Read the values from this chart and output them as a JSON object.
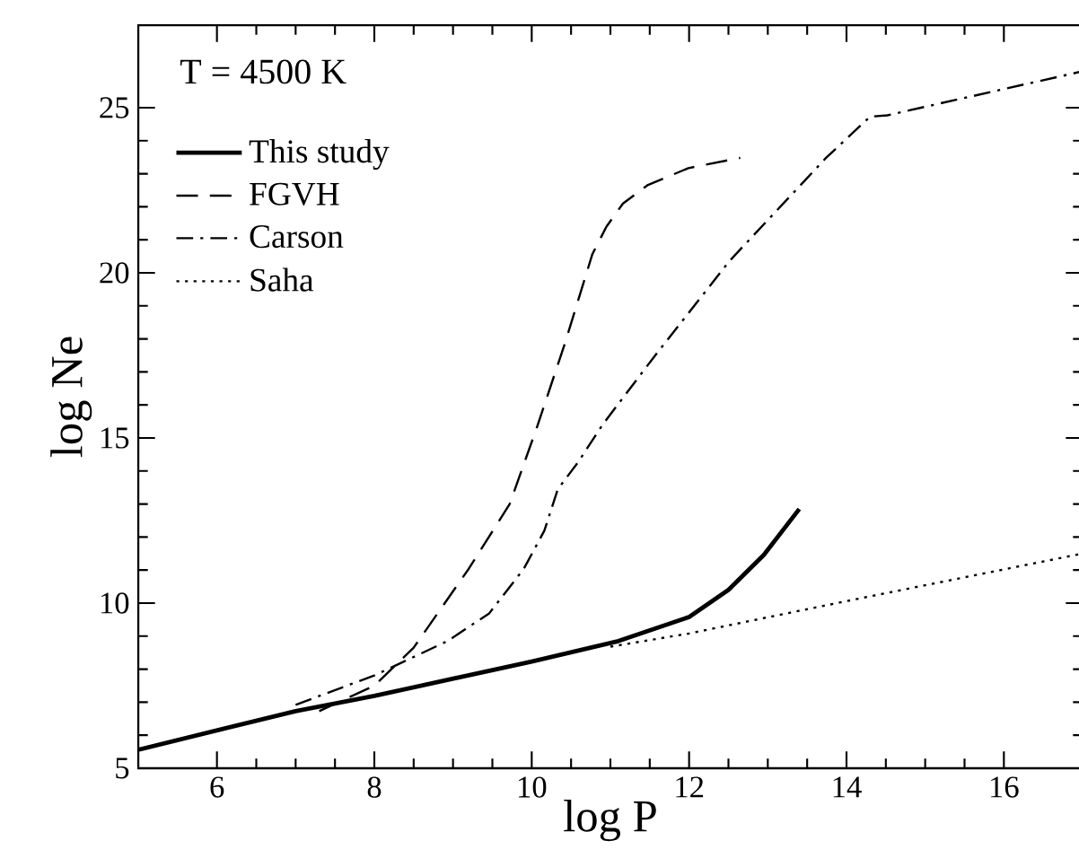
{
  "chart_data": {
    "type": "line",
    "xlabel": "log P",
    "ylabel": "log Ne",
    "annotations": [
      "T = 4500 K"
    ],
    "xlim": [
      5,
      17
    ],
    "ylim": [
      5,
      27.5
    ],
    "xticks": [
      6,
      8,
      10,
      12,
      14,
      16
    ],
    "yticks": [
      5,
      10,
      15,
      20,
      25
    ],
    "legend": "top left",
    "grid": false,
    "series": [
      {
        "name": "This study",
        "color": "#000000",
        "line_style": "solid",
        "x": [
          5,
          7,
          8,
          10,
          11.1,
          12,
          12.5,
          12.95,
          13.4
        ],
        "values": [
          5.56,
          6.73,
          7.19,
          8.23,
          8.85,
          9.58,
          10.4,
          11.46,
          12.85
        ]
      },
      {
        "name": "FGVH",
        "color": "#000000",
        "line_style": "dashed",
        "x": [
          7.3,
          8,
          8.5,
          9.2,
          9.72,
          10.07,
          10.42,
          10.77,
          10.95,
          11.16,
          11.47,
          11.99,
          12.65
        ],
        "values": [
          6.73,
          7.5,
          8.65,
          11.04,
          13.0,
          15.35,
          17.85,
          20.56,
          21.4,
          22.1,
          22.65,
          23.17,
          23.48
        ]
      },
      {
        "name": "Carson",
        "color": "#000000",
        "line_style": "dashdot",
        "x": [
          7.0,
          8,
          8.93,
          9.46,
          9.9,
          10.16,
          10.33,
          10.59,
          10.9,
          11.55,
          12.51,
          13.74,
          14.3,
          14.52,
          16.96
        ],
        "values": [
          6.92,
          7.81,
          8.85,
          9.69,
          11.04,
          12.19,
          13.44,
          14.27,
          15.4,
          17.44,
          20.35,
          23.48,
          24.73,
          24.77,
          26.08
        ]
      },
      {
        "name": "Saha",
        "color": "#000000",
        "line_style": "dotted",
        "x": [
          11,
          12,
          14,
          16,
          17
        ],
        "values": [
          8.68,
          9.08,
          10.06,
          11.02,
          11.5
        ]
      }
    ]
  }
}
